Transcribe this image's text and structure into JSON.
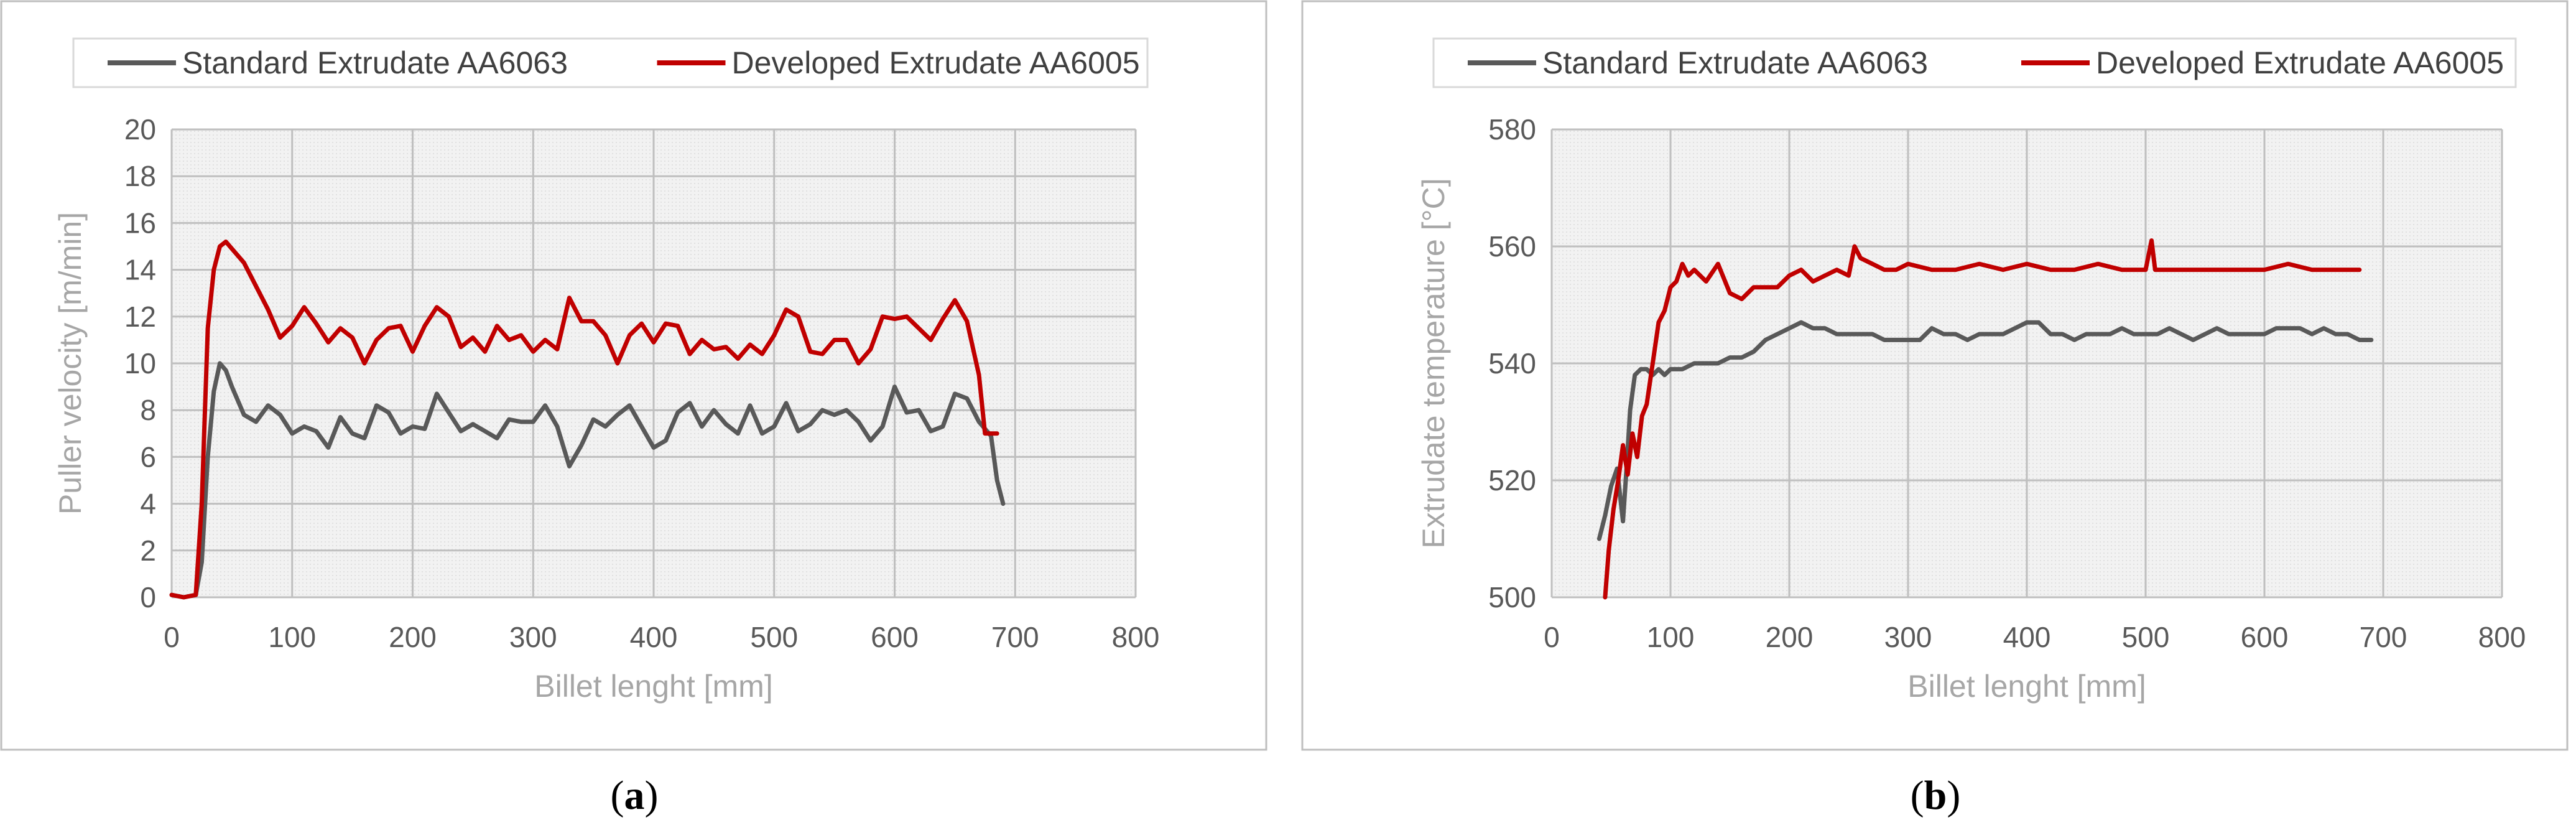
{
  "chart_data": [
    {
      "type": "line",
      "panel_label": "a",
      "xlabel": "Billet lenght [mm]",
      "ylabel": "Puller velocity [m/min]",
      "xlim": [
        0,
        800
      ],
      "ylim": [
        0,
        20
      ],
      "xticks": [
        0,
        100,
        200,
        300,
        400,
        500,
        600,
        700,
        800
      ],
      "yticks": [
        0,
        2,
        4,
        6,
        8,
        10,
        12,
        14,
        16,
        18,
        20
      ],
      "grid": true,
      "legend": "top",
      "series": [
        {
          "name": "Standard Extrudate AA6063",
          "color": "#595959",
          "x": [
            0,
            10,
            20,
            25,
            30,
            35,
            40,
            45,
            50,
            60,
            70,
            80,
            90,
            100,
            110,
            120,
            130,
            140,
            150,
            160,
            170,
            180,
            190,
            200,
            210,
            220,
            230,
            240,
            250,
            260,
            270,
            280,
            290,
            300,
            310,
            320,
            330,
            340,
            350,
            360,
            370,
            380,
            390,
            400,
            410,
            420,
            430,
            440,
            450,
            460,
            470,
            480,
            490,
            500,
            510,
            520,
            530,
            540,
            550,
            560,
            570,
            580,
            590,
            600,
            610,
            620,
            630,
            640,
            650,
            660,
            670,
            680,
            685,
            690
          ],
          "values": [
            0.1,
            0.0,
            0.1,
            1.5,
            6.0,
            8.8,
            10.0,
            9.7,
            9.0,
            7.8,
            7.5,
            8.2,
            7.8,
            7.0,
            7.3,
            7.1,
            6.4,
            7.7,
            7.0,
            6.8,
            8.2,
            7.9,
            7.0,
            7.3,
            7.2,
            8.7,
            7.9,
            7.1,
            7.4,
            7.1,
            6.8,
            7.6,
            7.5,
            7.5,
            8.2,
            7.3,
            5.6,
            6.5,
            7.6,
            7.3,
            7.8,
            8.2,
            7.3,
            6.4,
            6.7,
            7.9,
            8.3,
            7.3,
            8.0,
            7.4,
            7.0,
            8.2,
            7.0,
            7.3,
            8.3,
            7.1,
            7.4,
            8.0,
            7.8,
            8.0,
            7.5,
            6.7,
            7.3,
            9.0,
            7.9,
            8.0,
            7.1,
            7.3,
            8.7,
            8.5,
            7.5,
            6.9,
            5.0,
            4.0
          ]
        },
        {
          "name": "Developed Extrudate AA6005",
          "color": "#c00000",
          "x": [
            0,
            10,
            20,
            25,
            30,
            35,
            40,
            45,
            50,
            60,
            70,
            80,
            90,
            100,
            110,
            120,
            130,
            140,
            150,
            160,
            170,
            180,
            190,
            200,
            210,
            220,
            230,
            240,
            250,
            260,
            270,
            280,
            290,
            300,
            310,
            320,
            330,
            340,
            350,
            360,
            370,
            380,
            390,
            400,
            410,
            420,
            430,
            440,
            450,
            460,
            470,
            480,
            490,
            500,
            510,
            520,
            530,
            540,
            550,
            560,
            570,
            580,
            590,
            600,
            610,
            620,
            630,
            640,
            650,
            660,
            670,
            675,
            680,
            685
          ],
          "values": [
            0.1,
            0.0,
            0.1,
            4.0,
            11.5,
            14.0,
            15.0,
            15.2,
            14.9,
            14.3,
            13.3,
            12.3,
            11.1,
            11.6,
            12.4,
            11.7,
            10.9,
            11.5,
            11.1,
            10.0,
            11.0,
            11.5,
            11.6,
            10.5,
            11.6,
            12.4,
            12.0,
            10.7,
            11.1,
            10.5,
            11.6,
            11.0,
            11.2,
            10.5,
            11.0,
            10.6,
            12.8,
            11.8,
            11.8,
            11.2,
            10.0,
            11.2,
            11.7,
            10.9,
            11.7,
            11.6,
            10.4,
            11.0,
            10.6,
            10.7,
            10.2,
            10.8,
            10.4,
            11.2,
            12.3,
            12.0,
            10.5,
            10.4,
            11.0,
            11.0,
            10.0,
            10.6,
            12.0,
            11.9,
            12.0,
            11.5,
            11.0,
            11.9,
            12.7,
            11.8,
            9.5,
            7.0,
            7.0,
            7.0
          ]
        }
      ]
    },
    {
      "type": "line",
      "panel_label": "b",
      "xlabel": "Billet lenght [mm]",
      "ylabel": "Extrudate temperature [°C]",
      "xlim": [
        0,
        800
      ],
      "ylim": [
        500,
        580
      ],
      "xticks": [
        0,
        100,
        200,
        300,
        400,
        500,
        600,
        700,
        800
      ],
      "yticks": [
        500,
        520,
        540,
        560,
        580
      ],
      "grid": true,
      "legend": "top",
      "series": [
        {
          "name": "Standard Extrudate AA6063",
          "color": "#595959",
          "x": [
            40,
            45,
            50,
            55,
            60,
            63,
            66,
            70,
            75,
            80,
            85,
            90,
            95,
            100,
            110,
            120,
            130,
            140,
            150,
            160,
            170,
            180,
            190,
            200,
            210,
            220,
            230,
            240,
            250,
            260,
            270,
            280,
            290,
            300,
            310,
            320,
            330,
            340,
            350,
            360,
            370,
            380,
            390,
            400,
            410,
            420,
            430,
            440,
            450,
            460,
            470,
            480,
            490,
            500,
            510,
            520,
            530,
            540,
            550,
            560,
            570,
            580,
            590,
            600,
            610,
            620,
            630,
            640,
            650,
            660,
            670,
            680,
            690
          ],
          "values": [
            510,
            514,
            519,
            522,
            513,
            522,
            532,
            538,
            539,
            539,
            538,
            539,
            538,
            539,
            539,
            540,
            540,
            540,
            541,
            541,
            542,
            544,
            545,
            546,
            547,
            546,
            546,
            545,
            545,
            545,
            545,
            544,
            544,
            544,
            544,
            546,
            545,
            545,
            544,
            545,
            545,
            545,
            546,
            547,
            547,
            545,
            545,
            544,
            545,
            545,
            545,
            546,
            545,
            545,
            545,
            546,
            545,
            544,
            545,
            546,
            545,
            545,
            545,
            545,
            546,
            546,
            546,
            545,
            546,
            545,
            545,
            544,
            544
          ]
        },
        {
          "name": "Developed Extrudate AA6005",
          "color": "#c00000",
          "x": [
            45,
            48,
            52,
            56,
            60,
            64,
            68,
            72,
            76,
            80,
            85,
            90,
            95,
            100,
            105,
            110,
            115,
            120,
            130,
            140,
            150,
            160,
            170,
            180,
            190,
            200,
            210,
            220,
            230,
            240,
            250,
            255,
            260,
            270,
            280,
            290,
            300,
            320,
            340,
            360,
            380,
            400,
            420,
            440,
            460,
            480,
            500,
            505,
            508,
            511,
            520,
            540,
            560,
            580,
            600,
            620,
            640,
            660,
            680
          ],
          "values": [
            500,
            508,
            515,
            520,
            526,
            521,
            528,
            524,
            531,
            533,
            540,
            547,
            549,
            553,
            554,
            557,
            555,
            556,
            554,
            557,
            552,
            551,
            553,
            553,
            553,
            555,
            556,
            554,
            555,
            556,
            555,
            560,
            558,
            557,
            556,
            556,
            557,
            556,
            556,
            557,
            556,
            557,
            556,
            556,
            557,
            556,
            556,
            561,
            556,
            556,
            556,
            556,
            556,
            556,
            556,
            557,
            556,
            556,
            556
          ]
        }
      ]
    }
  ]
}
